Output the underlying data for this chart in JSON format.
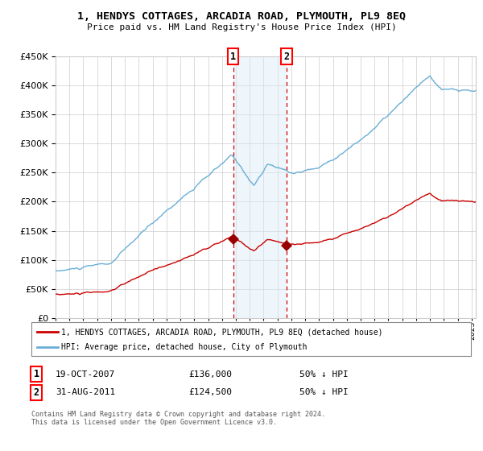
{
  "title": "1, HENDYS COTTAGES, ARCADIA ROAD, PLYMOUTH, PL9 8EQ",
  "subtitle": "Price paid vs. HM Land Registry's House Price Index (HPI)",
  "legend_line1": "1, HENDYS COTTAGES, ARCADIA ROAD, PLYMOUTH, PL9 8EQ (detached house)",
  "legend_line2": "HPI: Average price, detached house, City of Plymouth",
  "sale1_date": "19-OCT-2007",
  "sale1_price": "£136,000",
  "sale1_hpi": "50% ↓ HPI",
  "sale1_year": 2007.8,
  "sale1_value": 136000,
  "sale2_date": "31-AUG-2011",
  "sale2_price": "£124,500",
  "sale2_hpi": "50% ↓ HPI",
  "sale2_year": 2011.67,
  "sale2_value": 124500,
  "hpi_color": "#6aaed6",
  "price_color": "#cc0000",
  "marker_color": "#990000",
  "shade_color": "#daeaf7",
  "vline_color": "#cc0000",
  "grid_color": "#cccccc",
  "bg_color": "#ffffff",
  "ylim": [
    0,
    450000
  ],
  "yticks": [
    0,
    50000,
    100000,
    150000,
    200000,
    250000,
    300000,
    350000,
    400000,
    450000
  ],
  "xstart": 1995,
  "xend": 2025.3,
  "footnote": "Contains HM Land Registry data © Crown copyright and database right 2024.\nThis data is licensed under the Open Government Licence v3.0."
}
